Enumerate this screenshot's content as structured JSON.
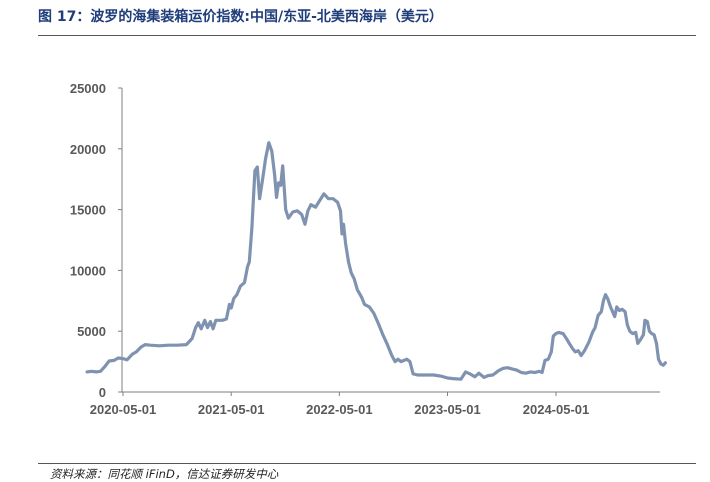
{
  "figure": {
    "title": "图 17：波罗的海集装箱运价指数:中国/东亚-北美西海岸（美元）",
    "source": "资料来源：同花顺 iFinD，信达证券研发中心"
  },
  "chart_data": {
    "type": "line",
    "title": "",
    "xlabel": "",
    "ylabel": "",
    "ylim": [
      0,
      25000
    ],
    "yticks": [
      0,
      5000,
      10000,
      15000,
      20000,
      25000
    ],
    "xlim": [
      "2020-01-01",
      "2025-04-01"
    ],
    "xticks": [
      "2020-05-01",
      "2021-05-01",
      "2022-05-01",
      "2023-05-01",
      "2024-05-01"
    ],
    "grid": false,
    "legend": "none",
    "series": [
      {
        "color": "#7f93b1",
        "points": [
          [
            "2020-01-01",
            1650
          ],
          [
            "2020-01-15",
            1700
          ],
          [
            "2020-02-01",
            1650
          ],
          [
            "2020-02-15",
            1700
          ],
          [
            "2020-03-01",
            2100
          ],
          [
            "2020-03-15",
            2550
          ],
          [
            "2020-04-01",
            2600
          ],
          [
            "2020-04-15",
            2800
          ],
          [
            "2020-05-01",
            2750
          ],
          [
            "2020-05-15",
            2650
          ],
          [
            "2020-06-01",
            3100
          ],
          [
            "2020-06-15",
            3300
          ],
          [
            "2020-07-01",
            3700
          ],
          [
            "2020-07-15",
            3900
          ],
          [
            "2020-08-01",
            3850
          ],
          [
            "2020-09-01",
            3800
          ],
          [
            "2020-10-01",
            3850
          ],
          [
            "2020-11-01",
            3850
          ],
          [
            "2020-12-01",
            3900
          ],
          [
            "2020-12-20",
            4400
          ],
          [
            "2021-01-01",
            5300
          ],
          [
            "2021-01-10",
            5700
          ],
          [
            "2021-01-20",
            5200
          ],
          [
            "2021-02-01",
            5900
          ],
          [
            "2021-02-10",
            5300
          ],
          [
            "2021-02-20",
            5800
          ],
          [
            "2021-03-01",
            5200
          ],
          [
            "2021-03-10",
            5900
          ],
          [
            "2021-04-01",
            5900
          ],
          [
            "2021-04-15",
            6000
          ],
          [
            "2021-04-25",
            7200
          ],
          [
            "2021-05-01",
            6900
          ],
          [
            "2021-05-10",
            7700
          ],
          [
            "2021-05-20",
            8000
          ],
          [
            "2021-06-01",
            8700
          ],
          [
            "2021-06-15",
            9000
          ],
          [
            "2021-06-25",
            10300
          ],
          [
            "2021-07-01",
            10700
          ],
          [
            "2021-07-10",
            13500
          ],
          [
            "2021-07-20",
            18200
          ],
          [
            "2021-07-28",
            18500
          ],
          [
            "2021-08-05",
            15900
          ],
          [
            "2021-08-15",
            17500
          ],
          [
            "2021-08-25",
            19200
          ],
          [
            "2021-09-05",
            20500
          ],
          [
            "2021-09-15",
            19800
          ],
          [
            "2021-09-25",
            17800
          ],
          [
            "2021-10-01",
            16000
          ],
          [
            "2021-10-08",
            17200
          ],
          [
            "2021-10-15",
            17000
          ],
          [
            "2021-10-22",
            18600
          ],
          [
            "2021-11-01",
            15000
          ],
          [
            "2021-11-10",
            14300
          ],
          [
            "2021-11-25",
            14800
          ],
          [
            "2021-12-10",
            14900
          ],
          [
            "2021-12-25",
            14600
          ],
          [
            "2022-01-05",
            13800
          ],
          [
            "2022-01-15",
            14900
          ],
          [
            "2022-01-25",
            15400
          ],
          [
            "2022-02-10",
            15200
          ],
          [
            "2022-02-25",
            15800
          ],
          [
            "2022-03-10",
            16300
          ],
          [
            "2022-03-25",
            15900
          ],
          [
            "2022-04-10",
            15900
          ],
          [
            "2022-04-25",
            15600
          ],
          [
            "2022-05-05",
            14900
          ],
          [
            "2022-05-10",
            13000
          ],
          [
            "2022-05-15",
            13800
          ],
          [
            "2022-05-22",
            12200
          ],
          [
            "2022-06-01",
            10700
          ],
          [
            "2022-06-10",
            9800
          ],
          [
            "2022-06-20",
            9300
          ],
          [
            "2022-07-01",
            8400
          ],
          [
            "2022-07-15",
            7800
          ],
          [
            "2022-07-25",
            7200
          ],
          [
            "2022-08-10",
            7000
          ],
          [
            "2022-08-25",
            6500
          ],
          [
            "2022-09-10",
            5600
          ],
          [
            "2022-09-25",
            4700
          ],
          [
            "2022-10-10",
            3900
          ],
          [
            "2022-10-25",
            3000
          ],
          [
            "2022-11-05",
            2500
          ],
          [
            "2022-11-15",
            2700
          ],
          [
            "2022-11-25",
            2500
          ],
          [
            "2022-12-05",
            2600
          ],
          [
            "2022-12-15",
            2700
          ],
          [
            "2022-12-25",
            2500
          ],
          [
            "2023-01-05",
            1500
          ],
          [
            "2023-01-20",
            1400
          ],
          [
            "2023-02-15",
            1400
          ],
          [
            "2023-03-15",
            1400
          ],
          [
            "2023-04-10",
            1300
          ],
          [
            "2023-05-01",
            1150
          ],
          [
            "2023-05-20",
            1100
          ],
          [
            "2023-06-15",
            1050
          ],
          [
            "2023-07-01",
            1650
          ],
          [
            "2023-07-15",
            1500
          ],
          [
            "2023-08-01",
            1250
          ],
          [
            "2023-08-15",
            1550
          ],
          [
            "2023-09-01",
            1200
          ],
          [
            "2023-09-15",
            1350
          ],
          [
            "2023-10-01",
            1400
          ],
          [
            "2023-10-20",
            1750
          ],
          [
            "2023-11-05",
            1950
          ],
          [
            "2023-11-20",
            2000
          ],
          [
            "2023-12-05",
            1900
          ],
          [
            "2023-12-20",
            1800
          ],
          [
            "2024-01-05",
            1600
          ],
          [
            "2024-01-20",
            1550
          ],
          [
            "2024-02-05",
            1650
          ],
          [
            "2024-02-20",
            1600
          ],
          [
            "2024-03-05",
            1700
          ],
          [
            "2024-03-15",
            1600
          ],
          [
            "2024-03-25",
            2600
          ],
          [
            "2024-04-05",
            2700
          ],
          [
            "2024-04-15",
            3300
          ],
          [
            "2024-04-22",
            4600
          ],
          [
            "2024-05-01",
            4800
          ],
          [
            "2024-05-10",
            4900
          ],
          [
            "2024-05-25",
            4800
          ],
          [
            "2024-06-05",
            4400
          ],
          [
            "2024-06-15",
            4000
          ],
          [
            "2024-06-25",
            3600
          ],
          [
            "2024-07-05",
            3300
          ],
          [
            "2024-07-15",
            3400
          ],
          [
            "2024-07-25",
            3000
          ],
          [
            "2024-08-05",
            3400
          ],
          [
            "2024-08-20",
            4100
          ],
          [
            "2024-09-01",
            4900
          ],
          [
            "2024-09-10",
            5300
          ],
          [
            "2024-09-20",
            6300
          ],
          [
            "2024-10-01",
            6600
          ],
          [
            "2024-10-08",
            7500
          ],
          [
            "2024-10-15",
            8000
          ],
          [
            "2024-10-22",
            7700
          ],
          [
            "2024-11-01",
            7000
          ],
          [
            "2024-11-08",
            6600
          ],
          [
            "2024-11-15",
            6200
          ],
          [
            "2024-11-22",
            7000
          ],
          [
            "2024-12-01",
            6700
          ],
          [
            "2024-12-10",
            6800
          ],
          [
            "2024-12-20",
            6600
          ],
          [
            "2024-12-28",
            5500
          ],
          [
            "2025-01-05",
            5000
          ],
          [
            "2025-01-15",
            4800
          ],
          [
            "2025-01-25",
            4900
          ],
          [
            "2025-02-01",
            4000
          ],
          [
            "2025-02-10",
            4300
          ],
          [
            "2025-02-20",
            4700
          ],
          [
            "2025-02-25",
            5900
          ],
          [
            "2025-03-05",
            5800
          ],
          [
            "2025-03-12",
            5000
          ],
          [
            "2025-03-20",
            4800
          ],
          [
            "2025-03-28",
            4700
          ],
          [
            "2025-04-05",
            4000
          ],
          [
            "2025-04-12",
            2700
          ],
          [
            "2025-04-20",
            2300
          ],
          [
            "2025-04-28",
            2200
          ],
          [
            "2025-05-05",
            2400
          ]
        ]
      }
    ]
  }
}
